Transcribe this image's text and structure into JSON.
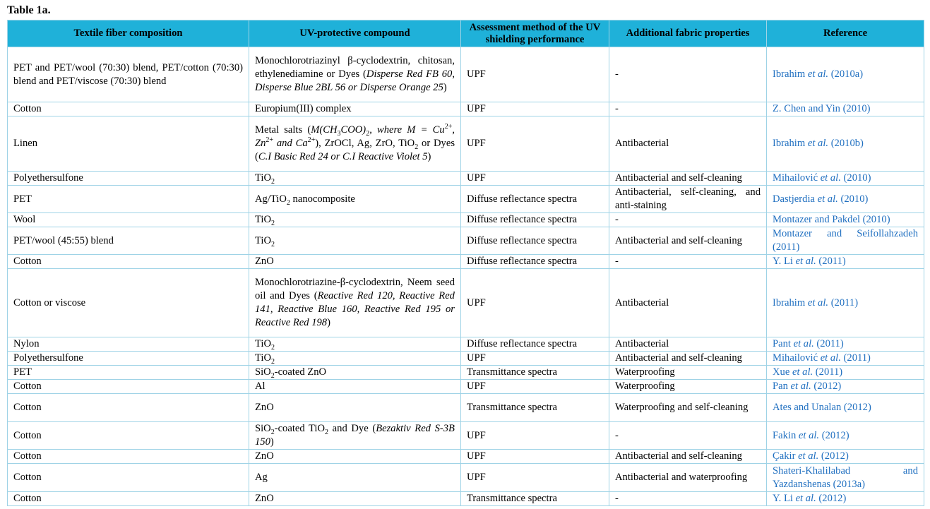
{
  "caption": "Table 1a.",
  "colors": {
    "header_bg": "#1fb1d9",
    "border": "#9fd3e6",
    "link": "#1f6fc0"
  },
  "headers": [
    "Textile fiber composition",
    "UV-protective compound",
    "Assessment method of the UV shielding performance",
    "Additional fabric properties",
    "Reference"
  ],
  "rows": [
    {
      "fiber": "PET and PET/wool (70:30) blend, PET/cotton (70:30) blend and PET/viscose (70:30) blend",
      "compound": [
        "Monochlorotriazinyl β-cyclodextrin, chitosan, ethylenediamine or Dyes (",
        {
          "i": "Disperse Red FB 60, Disperse Blue 2BL 56 or Disperse Orange 25"
        },
        ")"
      ],
      "method": "UPF",
      "properties": "-",
      "reference": [
        "Ibrahim ",
        {
          "i": "et al."
        },
        " (2010a)"
      ]
    },
    {
      "fiber": "Cotton",
      "compound": [
        "Europium(III) complex"
      ],
      "method": "UPF",
      "properties": "-",
      "reference": [
        "Z. Chen and Yin (2010)"
      ]
    },
    {
      "fiber": "Linen",
      "compound": [
        "Metal salts (",
        {
          "i": "M(CH"
        },
        {
          "sub": "3"
        },
        {
          "i": "COO)"
        },
        {
          "sub": "2"
        },
        {
          "i": ", where M = Cu"
        },
        {
          "sup": "2+"
        },
        {
          "i": ", Zn"
        },
        {
          "sup": "2+"
        },
        {
          "i": " and Ca"
        },
        {
          "sup": "2+"
        },
        "), ZrOCl, Ag, ZrO, TiO",
        {
          "sub": "2"
        },
        " or Dyes (",
        {
          "i": "C.I Basic Red 24 or C.I Reactive Violet 5"
        },
        ")"
      ],
      "method": "UPF",
      "properties": "Antibacterial",
      "reference": [
        "Ibrahim ",
        {
          "i": "et al."
        },
        " (2010b)"
      ]
    },
    {
      "fiber": "Polyethersulfone",
      "compound": [
        "TiO",
        {
          "sub": "2"
        }
      ],
      "method": "UPF",
      "properties": "Antibacterial and self-cleaning",
      "reference": [
        "Mihailović ",
        {
          "i": "et al."
        },
        " (2010)"
      ]
    },
    {
      "fiber": "PET",
      "compound": [
        "Ag/TiO",
        {
          "sub": "2"
        },
        " nanocomposite"
      ],
      "method": "Diffuse reflectance spectra",
      "properties": "Antibacterial, self-cleaning, and anti-staining",
      "reference": [
        "Dastjerdia ",
        {
          "i": "et al."
        },
        " (2010)"
      ]
    },
    {
      "fiber": "Wool",
      "compound": [
        "TiO",
        {
          "sub": "2"
        }
      ],
      "method": "Diffuse reflectance spectra",
      "properties": "-",
      "reference": [
        "Montazer and Pakdel (2010)"
      ]
    },
    {
      "fiber": "PET/wool (45:55) blend",
      "compound": [
        "TiO",
        {
          "sub": "2"
        }
      ],
      "method": "Diffuse reflectance spectra",
      "properties": "Antibacterial and self-cleaning",
      "reference": [
        "Montazer and Seifollahzadeh (2011)"
      ]
    },
    {
      "fiber": "Cotton",
      "compound": [
        "ZnO"
      ],
      "method": "Diffuse reflectance spectra",
      "properties": "-",
      "reference": [
        "Y. Li ",
        {
          "i": "et al."
        },
        " (2011)"
      ]
    },
    {
      "fiber": "Cotton or viscose",
      "compound": [
        "Monochlorotriazine-β-cyclodextrin, Neem seed oil and Dyes (",
        {
          "i": "Reactive Red 120, Reactive Red 141, Reactive Blue 160, Reactive Red 195 or Reactive Red 198"
        },
        ")"
      ],
      "method": "UPF",
      "properties": "Antibacterial",
      "reference": [
        "Ibrahim ",
        {
          "i": "et al."
        },
        " (2011)"
      ]
    },
    {
      "fiber": "Nylon",
      "compound": [
        "TiO",
        {
          "sub": "2"
        }
      ],
      "method": "Diffuse reflectance spectra",
      "properties": "Antibacterial",
      "reference": [
        "Pant ",
        {
          "i": "et al."
        },
        " (2011)"
      ]
    },
    {
      "fiber": "Polyethersulfone",
      "compound": [
        "TiO",
        {
          "sub": "2"
        }
      ],
      "method": "UPF",
      "properties": "Antibacterial and self-cleaning",
      "reference": [
        "Mihailović ",
        {
          "i": "et al."
        },
        " (2011)"
      ]
    },
    {
      "fiber": "PET",
      "compound": [
        "SiO",
        {
          "sub": "2"
        },
        "-coated ZnO"
      ],
      "method": "Transmittance spectra",
      "properties": "Waterproofing",
      "reference": [
        "Xue ",
        {
          "i": "et al."
        },
        " (2011)"
      ]
    },
    {
      "fiber": "Cotton",
      "compound": [
        "Al"
      ],
      "method": "UPF",
      "properties": "Waterproofing",
      "reference": [
        "Pan ",
        {
          "i": "et al."
        },
        " (2012)"
      ]
    },
    {
      "fiber": "Cotton",
      "compound": [
        "ZnO"
      ],
      "method": "Transmittance spectra",
      "properties": "Waterproofing and self-cleaning",
      "reference": [
        "Ates and Unalan (2012)"
      ]
    },
    {
      "fiber": "Cotton",
      "compound": [
        "SiO",
        {
          "sub": "2"
        },
        "-coated TiO",
        {
          "sub": "2"
        },
        " and Dye (",
        {
          "i": "Bezaktiv Red S-3B 150"
        },
        ")"
      ],
      "method": "UPF",
      "properties": "-",
      "reference": [
        "Fakin ",
        {
          "i": "et al."
        },
        " (2012)"
      ]
    },
    {
      "fiber": "Cotton",
      "compound": [
        "ZnO"
      ],
      "method": "UPF",
      "properties": "Antibacterial and self-cleaning",
      "reference": [
        "Çakir ",
        {
          "i": "et al."
        },
        " (2012)"
      ]
    },
    {
      "fiber": "Cotton",
      "compound": [
        "Ag"
      ],
      "method": "UPF",
      "properties": "Antibacterial and waterproofing",
      "reference": [
        "Shateri-Khalilabad and Yazdanshenas (2013a)"
      ]
    },
    {
      "fiber": "Cotton",
      "compound": [
        "ZnO"
      ],
      "method": "Transmittance spectra",
      "properties": "-",
      "reference": [
        "Y. Li ",
        {
          "i": "et al."
        },
        " (2012)"
      ]
    }
  ]
}
